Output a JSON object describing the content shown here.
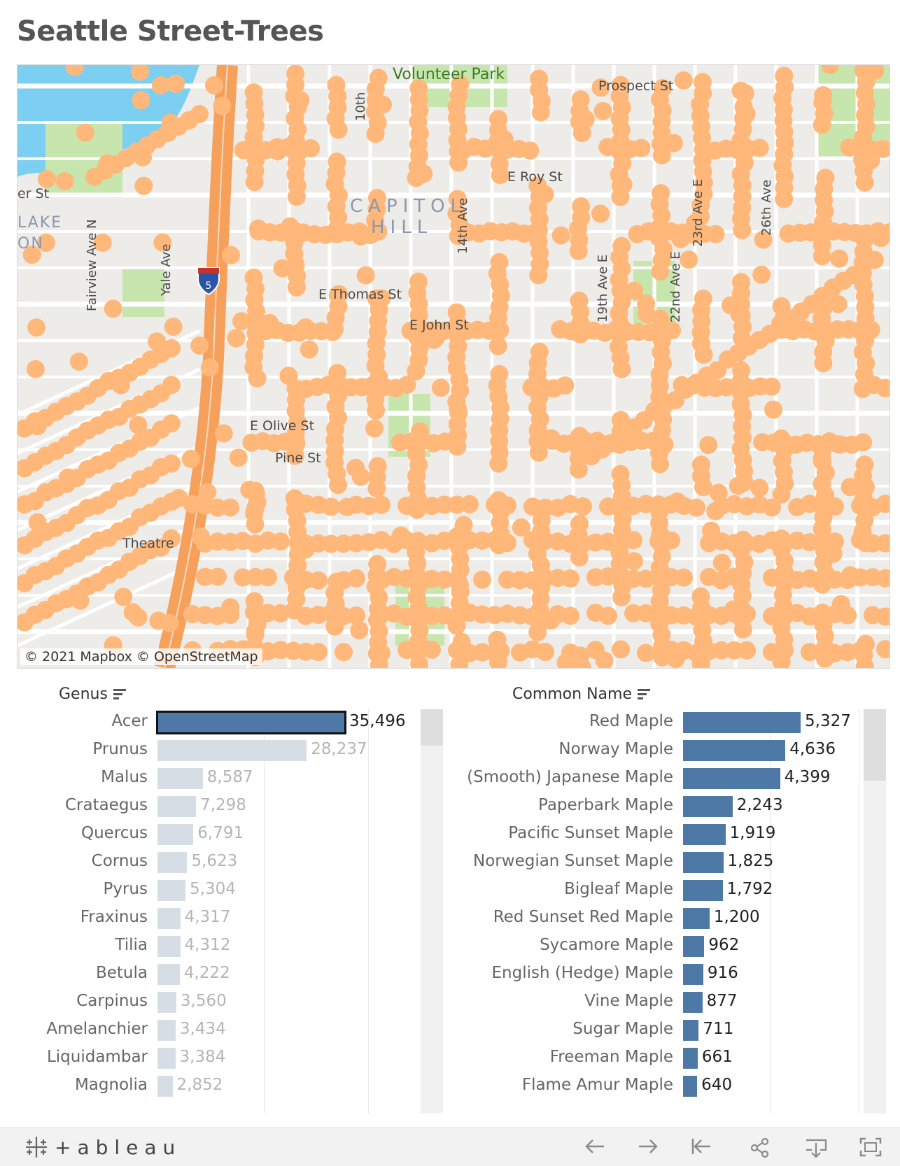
{
  "dashboard": {
    "title": "Seattle Street-Trees"
  },
  "map": {
    "attribution": "© 2021 Mapbox © OpenStreetMap",
    "park_label": "Volunteer Park",
    "neighborhood_labels": [
      "CAPITOL",
      "HILL"
    ],
    "street_labels": [
      "E Thomas St",
      "E Olive St",
      "E Roy St",
      "Fairview Ave N",
      "Yale Ave",
      "14th Ave",
      "19th Ave E",
      "23rd Ave E",
      "22nd Ave E",
      "26th Ave",
      "E John St",
      "Pine St",
      "Theatre",
      "Prospect St",
      "er St",
      "LAKE",
      "ON",
      "10th"
    ],
    "highway_shield": "5",
    "colors": {
      "water": "#7dcff2",
      "park": "#c7e6ad",
      "highway": "#f5a15c",
      "tree_dot": "#ffb77a",
      "land": "#eeece8"
    }
  },
  "genus_panel": {
    "header": "Genus",
    "sort_icon": "sort-descending-icon",
    "colors": {
      "selected": "#4e79a7",
      "unselected": "#d7dde5"
    },
    "rows": [
      {
        "label": "Acer",
        "value": 35496,
        "display": "35,496",
        "selected": true
      },
      {
        "label": "Prunus",
        "value": 28237,
        "display": "28,237",
        "selected": false
      },
      {
        "label": "Malus",
        "value": 8587,
        "display": "8,587",
        "selected": false
      },
      {
        "label": "Crataegus",
        "value": 7298,
        "display": "7,298",
        "selected": false
      },
      {
        "label": "Quercus",
        "value": 6791,
        "display": "6,791",
        "selected": false
      },
      {
        "label": "Cornus",
        "value": 5623,
        "display": "5,623",
        "selected": false
      },
      {
        "label": "Pyrus",
        "value": 5304,
        "display": "5,304",
        "selected": false
      },
      {
        "label": "Fraxinus",
        "value": 4317,
        "display": "4,317",
        "selected": false
      },
      {
        "label": "Tilia",
        "value": 4312,
        "display": "4,312",
        "selected": false
      },
      {
        "label": "Betula",
        "value": 4222,
        "display": "4,222",
        "selected": false
      },
      {
        "label": "Carpinus",
        "value": 3560,
        "display": "3,560",
        "selected": false
      },
      {
        "label": "Amelanchier",
        "value": 3434,
        "display": "3,434",
        "selected": false
      },
      {
        "label": "Liquidambar",
        "value": 3384,
        "display": "3,384",
        "selected": false
      },
      {
        "label": "Magnolia",
        "value": 2852,
        "display": "2,852",
        "selected": false
      }
    ]
  },
  "common_panel": {
    "header": "Common Name",
    "sort_icon": "sort-descending-icon",
    "colors": {
      "bar": "#4e79a7"
    },
    "rows": [
      {
        "label": "Red Maple",
        "value": 5327,
        "display": "5,327"
      },
      {
        "label": "Norway Maple",
        "value": 4636,
        "display": "4,636"
      },
      {
        "label": "(Smooth) Japanese Maple",
        "value": 4399,
        "display": "4,399"
      },
      {
        "label": "Paperbark Maple",
        "value": 2243,
        "display": "2,243"
      },
      {
        "label": "Pacific Sunset Maple",
        "value": 1919,
        "display": "1,919"
      },
      {
        "label": "Norwegian Sunset Maple",
        "value": 1825,
        "display": "1,825"
      },
      {
        "label": "Bigleaf Maple",
        "value": 1792,
        "display": "1,792"
      },
      {
        "label": "Red Sunset Red Maple",
        "value": 1200,
        "display": "1,200"
      },
      {
        "label": "Sycamore Maple",
        "value": 962,
        "display": "962"
      },
      {
        "label": "English (Hedge) Maple",
        "value": 916,
        "display": "916"
      },
      {
        "label": "Vine Maple",
        "value": 877,
        "display": "877"
      },
      {
        "label": "Sugar Maple",
        "value": 711,
        "display": "711"
      },
      {
        "label": "Freeman Maple",
        "value": 661,
        "display": "661"
      },
      {
        "label": "Flame Amur Maple",
        "value": 640,
        "display": "640"
      }
    ]
  },
  "toolbar": {
    "logo_text": "+ableau",
    "buttons": [
      "undo-icon",
      "redo-icon",
      "revert-icon",
      "share-icon",
      "download-icon",
      "fullscreen-icon"
    ]
  }
}
